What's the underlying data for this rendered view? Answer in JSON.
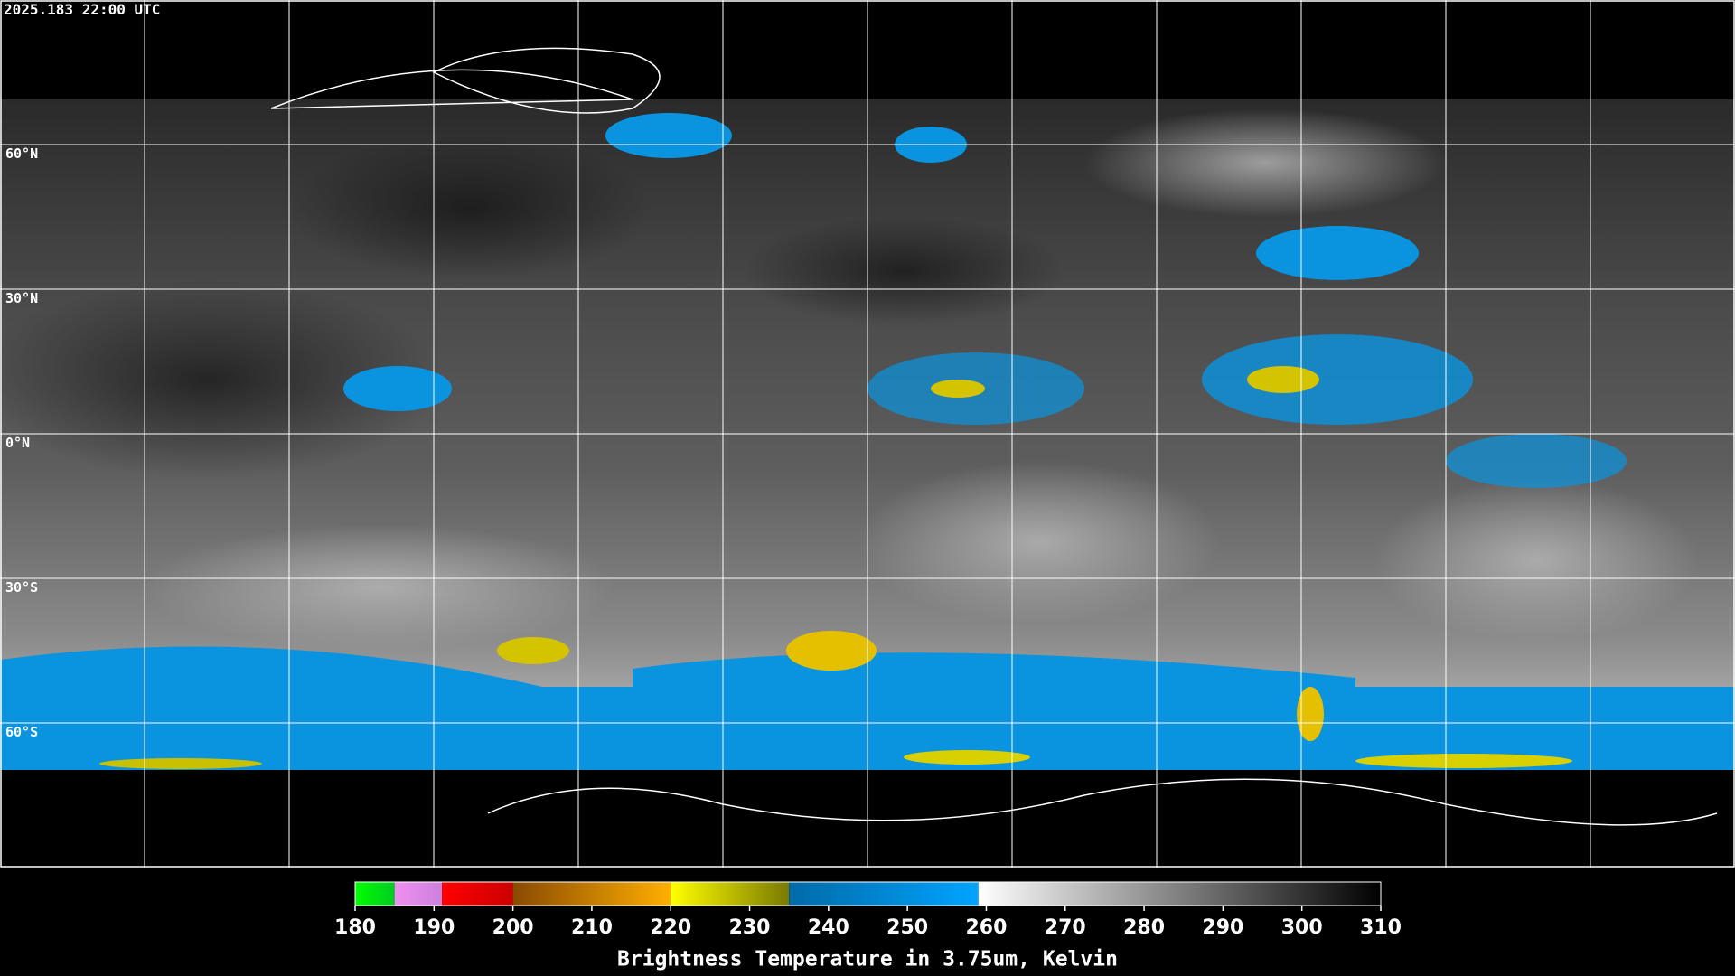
{
  "header": {
    "timestamp": "2025.183 22:00 UTC"
  },
  "map": {
    "lat_lines": [
      {
        "value": 60,
        "label": "60°N"
      },
      {
        "value": 30,
        "label": "30°N"
      },
      {
        "value": 0,
        "label": "0°N"
      },
      {
        "value": -30,
        "label": "30°S"
      },
      {
        "value": -60,
        "label": "60°S"
      }
    ],
    "lat_range": [
      90,
      -90
    ],
    "lon_lines": [
      -150,
      -120,
      -90,
      -60,
      -30,
      0,
      30,
      60,
      90,
      120,
      150
    ],
    "lon_range": [
      -180,
      180
    ]
  },
  "colorbar": {
    "title": "Brightness Temperature in 3.75um, Kelvin",
    "range": [
      180,
      310
    ],
    "ticks": [
      180,
      190,
      200,
      210,
      220,
      230,
      240,
      250,
      260,
      270,
      280,
      290,
      300,
      310
    ],
    "segments": [
      {
        "from": 180,
        "to": 185,
        "colors": [
          "#00ff00",
          "#00cc22"
        ]
      },
      {
        "from": 185,
        "to": 191,
        "colors": [
          "#f090f0",
          "#cc80dd"
        ]
      },
      {
        "from": 191,
        "to": 200,
        "colors": [
          "#ff0000",
          "#cc0000"
        ]
      },
      {
        "from": 200,
        "to": 220,
        "colors": [
          "#8a4a00",
          "#ffb000"
        ]
      },
      {
        "from": 220,
        "to": 235,
        "colors": [
          "#ffff00",
          "#7a7a00"
        ]
      },
      {
        "from": 235,
        "to": 259,
        "colors": [
          "#006aa8",
          "#00a4ff"
        ]
      },
      {
        "from": 259,
        "to": 310,
        "colors": [
          "#ffffff",
          "#000000"
        ]
      }
    ]
  }
}
